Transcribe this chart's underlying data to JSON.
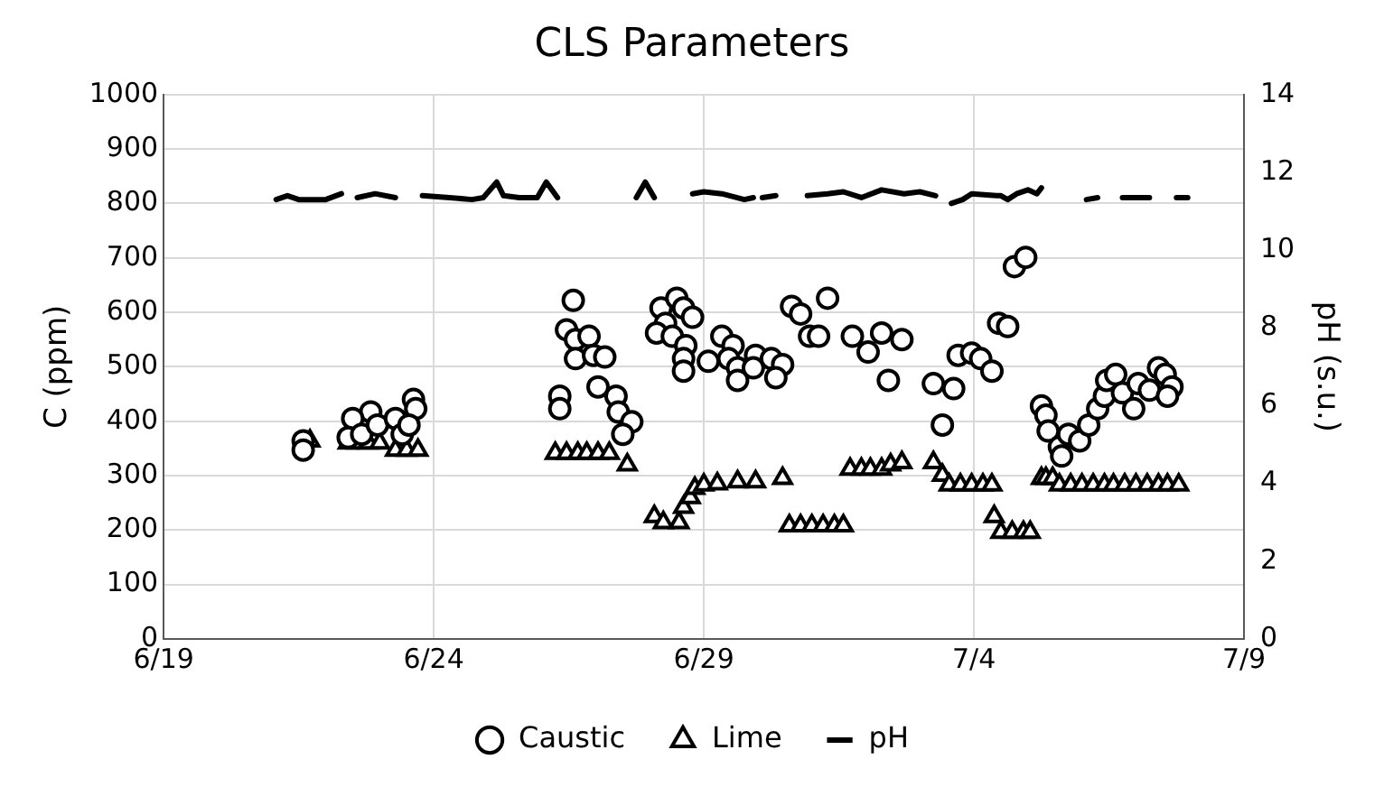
{
  "chart_data": {
    "type": "scatter",
    "title": "CLS Parameters",
    "ylabel": "C (ppm)",
    "y2label": "pH (s.u.)",
    "xlim": [
      "--06-19",
      "--07-09"
    ],
    "xticks": [
      {
        "value": "--06-19",
        "label": "6/19"
      },
      {
        "value": "--06-24",
        "label": "6/24"
      },
      {
        "value": "--06-29",
        "label": "6/29"
      },
      {
        "value": "--07-04",
        "label": "7/4"
      },
      {
        "value": "--07-09",
        "label": "7/9"
      }
    ],
    "ylim": [
      0,
      1000
    ],
    "yticks": [
      0,
      100,
      200,
      300,
      400,
      500,
      600,
      700,
      800,
      900,
      1000
    ],
    "y2lim": [
      0,
      14
    ],
    "y2ticks": [
      0,
      2,
      4,
      6,
      8,
      10,
      12,
      14
    ],
    "grid": true,
    "legend": "bottom",
    "series": [
      {
        "name": "Caustic",
        "marker": "circle",
        "color": "#000000",
        "x": [
          "--06-21T14:00",
          "--06-21T14:00",
          "--06-22T20:00",
          "--06-22T12:00",
          "--06-22T10:00",
          "--06-22T16:00",
          "--06-22T23:00",
          "--06-23T07:00",
          "--06-23T10:00",
          "--06-23T15:00",
          "--06-23T16:00",
          "--06-23T13:00",
          "--06-26T14:00",
          "--06-26T11:00",
          "--06-26T15:00",
          "--06-26T21:00",
          "--06-26T15:00",
          "--06-26T23:00",
          "--06-27T04:00",
          "--06-26T08:00",
          "--06-26T08:00",
          "--06-27T01:00",
          "--06-27T09:00",
          "--06-27T10:00",
          "--06-27T16:00",
          "--06-27T12:00",
          "--06-28T05:00",
          "--06-28T12:00",
          "--06-28T07:00",
          "--06-28T15:00",
          "--06-28T19:00",
          "--06-28T03:00",
          "--06-28T10:00",
          "--06-28T16:00",
          "--06-28T15:00",
          "--06-28T15:00",
          "--06-29T02:00",
          "--06-29T08:00",
          "--06-29T13:00",
          "--06-29T11:00",
          "--06-29T15:00",
          "--06-29T15:00",
          "--06-29T23:00",
          "--06-29T22:00",
          "--06-30T06:00",
          "--06-30T11:00",
          "--06-30T08:00",
          "--06-30T15:00",
          "--06-30T19:00",
          "--07-01T07:00",
          "--06-30T23:00",
          "--07-01T03:00",
          "--07-01T18:00",
          "--07-02T01:00",
          "--07-02T07:00",
          "--07-02T16:00",
          "--07-02T10:00",
          "--07-03T06:00",
          "--07-03T15:00",
          "--07-03T10:00",
          "--07-03T17:00",
          "--07-03T23:00",
          "--07-04T03:00",
          "--07-04T08:00",
          "--07-04T11:00",
          "--07-04T15:00",
          "--07-04T18:00",
          "--07-04T23:00",
          "--07-05T06:00",
          "--07-05T08:00",
          "--07-05T09:00",
          "--07-05T14:00",
          "--07-05T15:00",
          "--07-05T18:00",
          "--07-05T23:00",
          "--07-06T03:00",
          "--07-06T07:00",
          "--07-06T10:00",
          "--07-06T11:00",
          "--07-06T15:00",
          "--07-06T18:00",
          "--07-06T23:00",
          "--07-07T01:00",
          "--07-07T06:00",
          "--07-07T10:00",
          "--07-07T13:00",
          "--07-07T16:00",
          "--07-07T14:00"
        ],
        "values": [
          364,
          347,
          417,
          405,
          370,
          376,
          393,
          405,
          376,
          440,
          423,
          393,
          622,
          568,
          550,
          556,
          515,
          521,
          518,
          446,
          423,
          463,
          446,
          417,
          399,
          376,
          608,
          626,
          580,
          608,
          591,
          562,
          556,
          539,
          515,
          492,
          510,
          556,
          539,
          515,
          498,
          475,
          521,
          498,
          515,
          504,
          480,
          611,
          597,
          626,
          556,
          556,
          556,
          527,
          562,
          550,
          475,
          469,
          460,
          393,
          521,
          525,
          515,
          492,
          580,
          574,
          684,
          701,
          428,
          411,
          382,
          353,
          336,
          376,
          364,
          393,
          423,
          446,
          475,
          486,
          452,
          423,
          469,
          457,
          498,
          486,
          463,
          446
        ]
      },
      {
        "name": "Lime",
        "marker": "triangle",
        "color": "#000000",
        "x": [
          "--06-21T17:00",
          "--06-22T10:00",
          "--06-22T14:00",
          "--06-22T19:00",
          "--06-23T00:00",
          "--06-23T07:00",
          "--06-23T12:00",
          "--06-23T17:00",
          "--06-26T06:00",
          "--06-26T11:00",
          "--06-26T16:00",
          "--06-26T20:00",
          "--06-27T01:00",
          "--06-27T06:00",
          "--06-27T14:00",
          "--06-28T02:00",
          "--06-28T06:00",
          "--06-28T13:00",
          "--06-28T15:00",
          "--06-28T18:00",
          "--06-28T20:00",
          "--06-29T00:00",
          "--06-29T06:00",
          "--06-29T15:00",
          "--06-29T23:00",
          "--06-30T11:00",
          "--06-30T14:00",
          "--06-30T19:00",
          "--07-01T00:00",
          "--07-01T05:00",
          "--07-01T10:00",
          "--07-01T14:00",
          "--07-01T17:00",
          "--07-01T22:00",
          "--07-02T02:00",
          "--07-02T07:00",
          "--07-02T11:00",
          "--07-02T16:00",
          "--07-03T06:00",
          "--07-03T10:00",
          "--07-03T13:00",
          "--07-03T18:00",
          "--07-03T23:00",
          "--07-04T04:00",
          "--07-04T08:00",
          "--07-04T09:00",
          "--07-04T12:00",
          "--07-04T17:00",
          "--07-04T22:00",
          "--07-05T01:00",
          "--07-05T06:00",
          "--07-05T08:00",
          "--07-05T11:00",
          "--07-05T14:00",
          "--07-05T19:00",
          "--07-06T00:00",
          "--07-06T05:00",
          "--07-06T10:00",
          "--07-06T14:00",
          "--07-06T19:00",
          "--07-07T00:00",
          "--07-07T05:00",
          "--07-07T10:00",
          "--07-07T14:00",
          "--07-07T19:00"
        ],
        "values": [
          364,
          360,
          360,
          360,
          360,
          347,
          347,
          347,
          341,
          341,
          341,
          341,
          341,
          341,
          320,
          225,
          214,
          214,
          242,
          260,
          277,
          283,
          285,
          289,
          289,
          295,
          208,
          208,
          208,
          208,
          208,
          208,
          312,
          312,
          312,
          312,
          320,
          324,
          324,
          301,
          283,
          283,
          283,
          283,
          283,
          225,
          196,
          196,
          196,
          196,
          295,
          295,
          295,
          283,
          283,
          283,
          283,
          283,
          283,
          283,
          283,
          283,
          283,
          283,
          283
        ]
      },
      {
        "name": "pH",
        "type": "line",
        "axis": "y2",
        "marker": "none",
        "line_style": "solid",
        "color": "#000000",
        "x": [
          "--06-21T02:00",
          "--06-21T07:00",
          "--06-21T12:00",
          "--06-21T18:00",
          "--06-22T00:00",
          "--06-22T07:00",
          "--06-22T11:00",
          "--06-22T14:00",
          "--06-22T22:00",
          "--06-23T07:00",
          "--06-23T12:00",
          "--06-23T19:00",
          "--06-24T07:00",
          "--06-24T17:00",
          "--06-24T22:00",
          "--06-25T04:00",
          "--06-25T07:00",
          "--06-25T14:00",
          "--06-25T22:00",
          "--06-26T02:00",
          "--06-26T07:00",
          "--06-27T00:00",
          "--06-27T18:00",
          "--06-27T22:00",
          "--06-28T02:00",
          "--06-28T10:00",
          "--06-28T19:00",
          "--06-29T00:00",
          "--06-29T08:00",
          "--06-29T18:00",
          "--06-29T22:00",
          "--06-30T00:00",
          "--06-30T02:00",
          "--06-30T08:00",
          "--06-30T14:00",
          "--06-30T22:00",
          "--07-01T07:00",
          "--07-01T14:00",
          "--07-01T22:00",
          "--07-02T07:00",
          "--07-02T17:00",
          "--07-03T00:00",
          "--07-03T07:00",
          "--07-03T11:00",
          "--07-03T14:00",
          "--07-03T19:00",
          "--07-03T23:00",
          "--07-04T10:00",
          "--07-04T12:00",
          "--07-04T15:00",
          "--07-04T19:00",
          "--07-05T00:00",
          "--07-05T04:00",
          "--07-05T06:00",
          "--07-05T17:00",
          "--07-06T02:00",
          "--07-06T07:00",
          "--07-06T12:00",
          "--07-06T18:00",
          "--07-07T06:00",
          "--07-07T12:00",
          "--07-07T18:00",
          "--07-07T23:00"
        ],
        "values": [
          11.3,
          11.4,
          11.3,
          11.3,
          11.3,
          11.45,
          null,
          11.35,
          11.45,
          11.35,
          null,
          11.4,
          11.35,
          11.3,
          11.35,
          11.75,
          11.4,
          11.35,
          11.35,
          11.75,
          11.35,
          null,
          11.35,
          11.75,
          11.35,
          null,
          11.45,
          11.5,
          11.45,
          11.3,
          11.35,
          null,
          11.35,
          11.4,
          null,
          11.4,
          11.45,
          11.5,
          11.35,
          11.55,
          11.45,
          11.5,
          11.4,
          null,
          11.2,
          11.3,
          11.45,
          11.4,
          11.4,
          11.3,
          11.45,
          11.55,
          11.45,
          11.6,
          null,
          11.3,
          11.35,
          null,
          11.35,
          11.35,
          null,
          11.35,
          11.35
        ]
      }
    ]
  }
}
